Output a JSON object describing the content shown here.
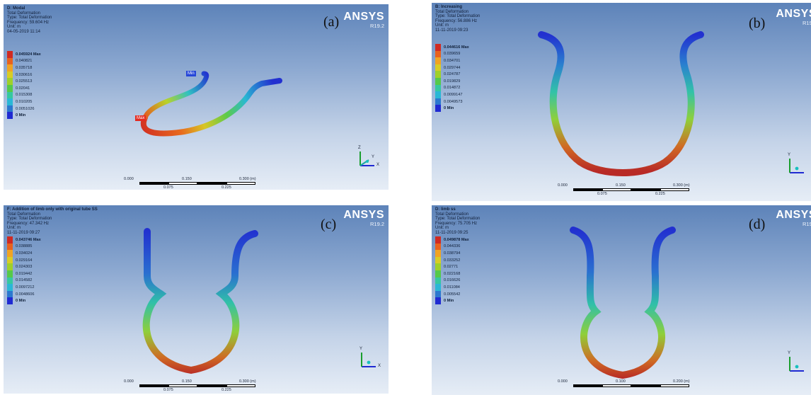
{
  "panels": [
    {
      "label": "(a)",
      "brand": {
        "name": "ANSYS",
        "version": "R19.2"
      },
      "info": {
        "title": "D: Modal",
        "result": "Total Deformation",
        "type": "Type: Total Deformation",
        "frequency": "Frequency: 59.604 Hz",
        "unit": "Unit: m",
        "date": "04-05-2019 11:14"
      },
      "legend": [
        "0.045924 Max",
        "0.040821",
        "0.035718",
        "0.030616",
        "0.025513",
        "0.02041",
        "0.015308",
        "0.010205",
        "0.0051026",
        "0 Min"
      ],
      "probes": {
        "min": "Min",
        "max": "Max"
      },
      "scale": {
        "ticks": [
          "0.000",
          "0.150",
          "0.300 (m)"
        ],
        "subticks": [
          "0.075",
          "0.225"
        ]
      },
      "axes": {
        "x": "X",
        "y": "Y",
        "z": "Z"
      }
    },
    {
      "label": "(b)",
      "brand": {
        "name": "ANSYS",
        "version": "R19.2"
      },
      "info": {
        "title": "B: Increasing",
        "result": "Total Deformation",
        "type": "Type: Total Deformation",
        "frequency": "Frequency: 56.886 Hz",
        "unit": "Unit: m",
        "date": "11-11-2019 09:23"
      },
      "legend": [
        "0.044616 Max",
        "0.039659",
        "0.034701",
        "0.029744",
        "0.024787",
        "0.019829",
        "0.014872",
        "0.0099147",
        "0.0049573",
        "0 Min"
      ],
      "scale": {
        "ticks": [
          "0.000",
          "0.150",
          "0.300 (m)"
        ],
        "subticks": [
          "0.075",
          "0.225"
        ]
      },
      "axes": {
        "x": "",
        "y": "Y",
        "z": ""
      }
    },
    {
      "label": "(c)",
      "brand": {
        "name": "ANSYS",
        "version": "R19.2"
      },
      "info": {
        "title": "F: Addition of limb only with original tube SS",
        "result": "Total Deformation",
        "type": "Type: Total Deformation",
        "frequency": "Frequency: 47.342 Hz",
        "unit": "Unit: m",
        "date": "11-11-2019 09:27"
      },
      "legend": [
        "0.043746 Max",
        "0.038885",
        "0.034024",
        "0.029164",
        "0.024303",
        "0.019442",
        "0.014582",
        "0.0097212",
        "0.0048606",
        "0 Min"
      ],
      "scale": {
        "ticks": [
          "0.000",
          "0.150",
          "0.300 (m)"
        ],
        "subticks": [
          "0.075",
          "0.225"
        ]
      },
      "axes": {
        "x": "X",
        "y": "Y",
        "z": ""
      }
    },
    {
      "label": "(d)",
      "brand": {
        "name": "ANSYS",
        "version": "R19.2"
      },
      "info": {
        "title": "D: limb ss",
        "result": "Total Deformation",
        "type": "Type: Total Deformation",
        "frequency": "Frequency: 75.705 Hz",
        "unit": "Unit: m",
        "date": "11-11-2019 09:25"
      },
      "legend": [
        "0.049878 Max",
        "0.044336",
        "0.038794",
        "0.033252",
        "0.02771",
        "0.022168",
        "0.016626",
        "0.011084",
        "0.005542",
        "0 Min"
      ],
      "scale": {
        "ticks": [
          "0.000",
          "0.100",
          "0.200 (m)"
        ],
        "subticks": [
          " ",
          " "
        ]
      },
      "axes": {
        "x": "",
        "y": "Y",
        "z": ""
      }
    }
  ],
  "colors": {
    "legend": [
      "#d02a22",
      "#e8621e",
      "#f0a323",
      "#d8cc25",
      "#9fd02a",
      "#55c94a",
      "#35c8a0",
      "#2ab7d6",
      "#2b78cf",
      "#1f2ad2"
    ],
    "accent_max": "#e32a20",
    "accent_min": "#2546d8"
  }
}
